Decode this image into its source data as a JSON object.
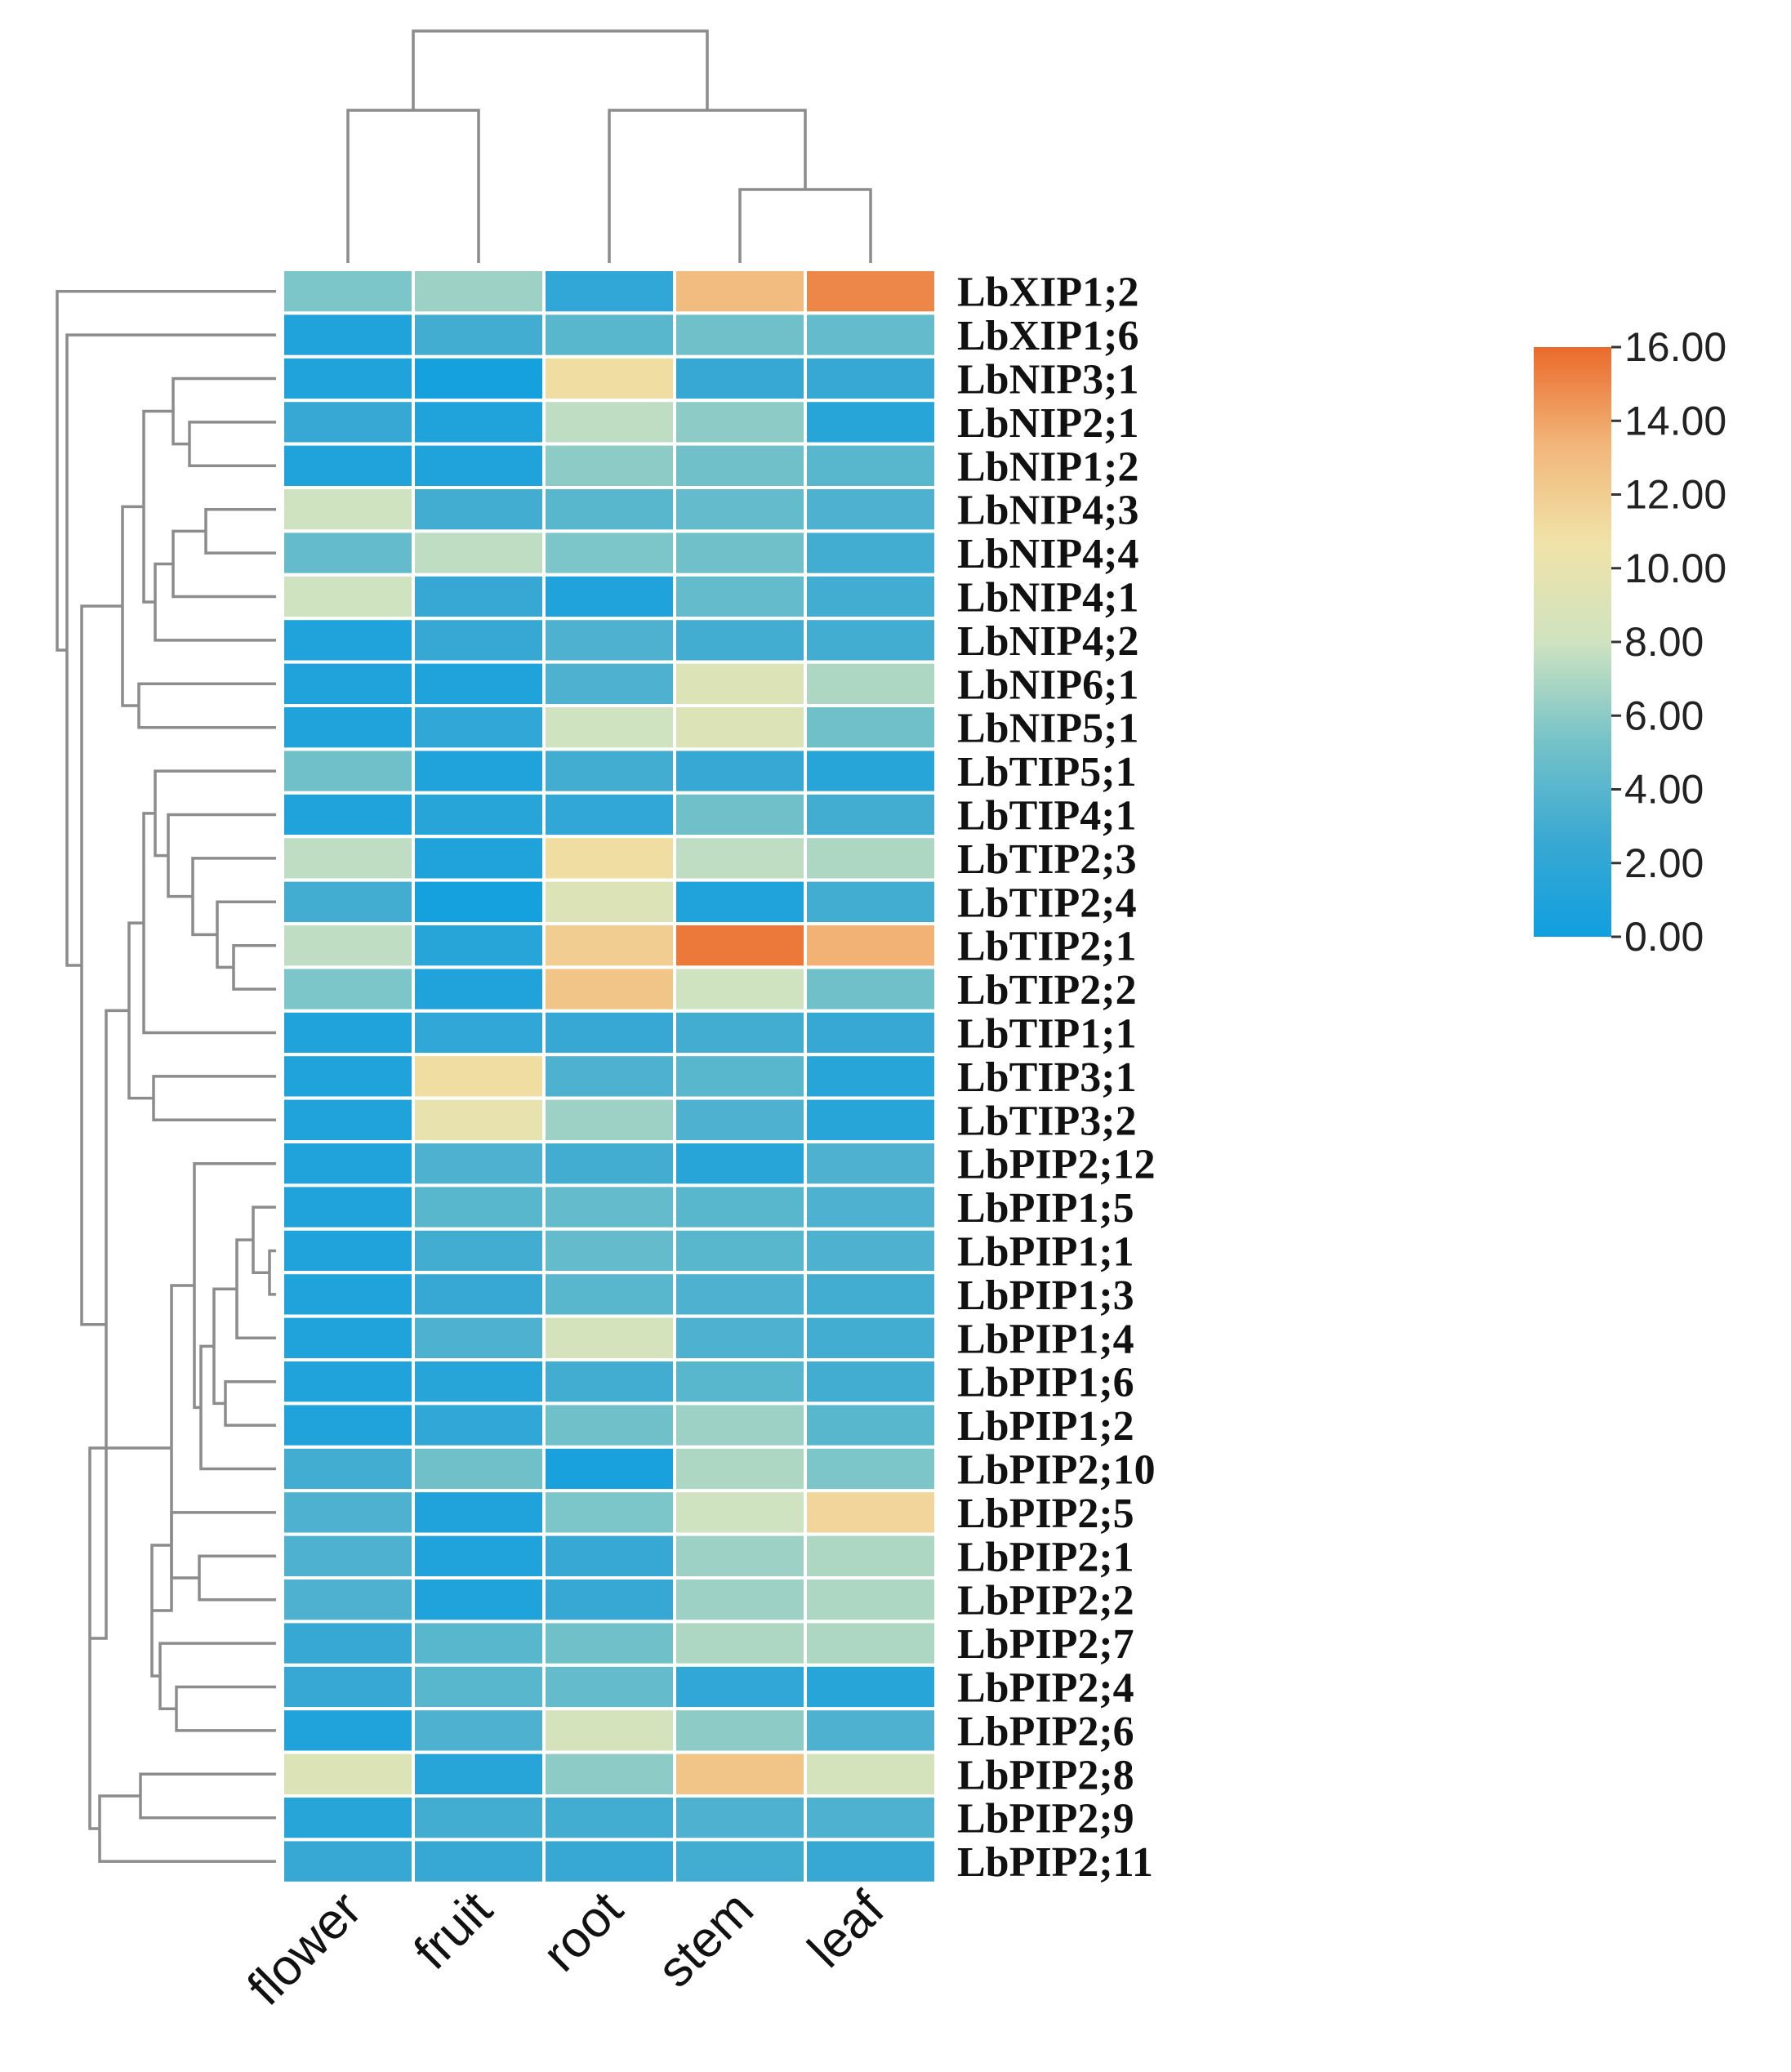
{
  "chart_data": {
    "type": "heatmap",
    "title": "",
    "columns": [
      "flower",
      "fruit",
      "root",
      "stem",
      "leaf"
    ],
    "rows": [
      "LbXIP1;2",
      "LbXIP1;6",
      "LbNIP3;1",
      "LbNIP2;1",
      "LbNIP1;2",
      "LbNIP4;3",
      "LbNIP4;4",
      "LbNIP4;1",
      "LbNIP4;2",
      "LbNIP6;1",
      "LbNIP5;1",
      "LbTIP5;1",
      "LbTIP4;1",
      "LbTIP2;3",
      "LbTIP2;4",
      "LbTIP2;1",
      "LbTIP2;2",
      "LbTIP1;1",
      "LbTIP3;1",
      "LbTIP3;2",
      "LbPIP2;12",
      "LbPIP1;5",
      "LbPIP1;1",
      "LbPIP1;3",
      "LbPIP1;4",
      "LbPIP1;6",
      "LbPIP1;2",
      "LbPIP2;10",
      "LbPIP2;5",
      "LbPIP2;1",
      "LbPIP2;2",
      "LbPIP2;7",
      "LbPIP2;4",
      "LbPIP2;6",
      "LbPIP2;8",
      "LbPIP2;9",
      "LbPIP2;11"
    ],
    "values": [
      [
        5.5,
        6.5,
        2.0,
        13.0,
        15.0
      ],
      [
        1.0,
        3.0,
        4.0,
        5.0,
        4.5
      ],
      [
        1.0,
        0.3,
        11.0,
        2.5,
        2.5
      ],
      [
        2.5,
        1.0,
        7.5,
        6.0,
        1.5
      ],
      [
        1.0,
        1.0,
        6.0,
        5.0,
        4.0
      ],
      [
        8.0,
        3.0,
        4.0,
        4.5,
        3.5
      ],
      [
        4.5,
        7.5,
        5.5,
        5.0,
        3.0
      ],
      [
        8.0,
        2.5,
        1.0,
        4.5,
        3.0
      ],
      [
        1.0,
        2.5,
        3.5,
        3.0,
        3.0
      ],
      [
        1.0,
        1.0,
        3.5,
        9.0,
        7.0
      ],
      [
        1.0,
        2.0,
        8.0,
        9.0,
        5.0
      ],
      [
        5.0,
        1.0,
        3.0,
        2.5,
        1.5
      ],
      [
        1.0,
        1.5,
        2.0,
        5.0,
        3.0
      ],
      [
        7.5,
        1.0,
        11.0,
        7.5,
        7.0
      ],
      [
        3.0,
        0.3,
        9.0,
        1.0,
        3.0
      ],
      [
        7.5,
        1.5,
        12.0,
        15.5,
        13.5
      ],
      [
        5.5,
        1.0,
        12.5,
        8.0,
        5.0
      ],
      [
        1.0,
        2.0,
        2.5,
        3.0,
        2.5
      ],
      [
        1.0,
        11.0,
        3.5,
        4.0,
        1.5
      ],
      [
        1.0,
        10.0,
        6.5,
        3.5,
        1.5
      ],
      [
        1.0,
        3.5,
        3.0,
        1.5,
        3.5
      ],
      [
        1.0,
        4.0,
        4.5,
        4.0,
        3.5
      ],
      [
        1.0,
        3.0,
        4.5,
        4.0,
        3.5
      ],
      [
        1.0,
        2.5,
        4.0,
        3.5,
        3.0
      ],
      [
        1.0,
        3.5,
        8.5,
        3.5,
        3.0
      ],
      [
        1.0,
        1.5,
        3.0,
        4.0,
        3.0
      ],
      [
        1.0,
        2.0,
        5.0,
        6.5,
        4.0
      ],
      [
        3.0,
        5.0,
        0.5,
        7.0,
        5.5
      ],
      [
        3.5,
        1.0,
        5.5,
        8.0,
        11.5
      ],
      [
        3.5,
        1.0,
        2.5,
        6.5,
        7.0
      ],
      [
        3.5,
        1.0,
        2.5,
        6.5,
        7.0
      ],
      [
        2.5,
        4.0,
        5.0,
        7.0,
        7.0
      ],
      [
        2.5,
        4.0,
        4.5,
        2.0,
        1.5
      ],
      [
        1.0,
        3.5,
        8.5,
        6.0,
        3.5
      ],
      [
        9.0,
        1.5,
        6.0,
        12.5,
        8.5
      ],
      [
        1.5,
        3.0,
        3.0,
        3.5,
        3.5
      ],
      [
        2.5,
        2.5,
        2.5,
        3.0,
        2.5
      ]
    ],
    "color_scale": {
      "min": 0,
      "max": 16,
      "ticks": [
        "16.00",
        "14.00",
        "12.00",
        "10.00",
        "8.00",
        "6.00",
        "4.00",
        "2.00",
        "0.00"
      ],
      "colors": [
        "#109fe0",
        "#3aa9d2",
        "#76c3c8",
        "#cfe3c0",
        "#f0e3a8",
        "#f2b67a",
        "#ea6a2b"
      ]
    },
    "dendrogram_color": "#8c8c8c",
    "legend_position": "right"
  }
}
